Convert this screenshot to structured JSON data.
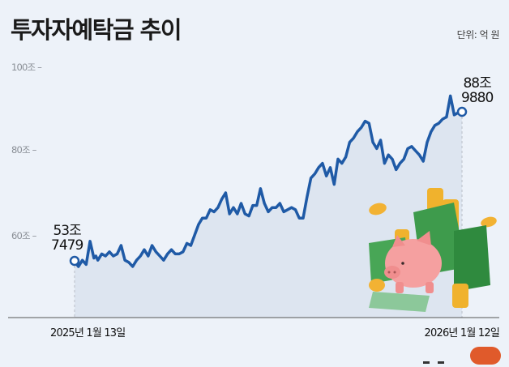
{
  "header": {
    "title": "투자자예탁금 추이",
    "unit": "단위: 억 원"
  },
  "y_axis": {
    "ticks": [
      {
        "label": "100조 –",
        "value": 100
      },
      {
        "label": "80조 –",
        "value": 80
      },
      {
        "label": "60조 –",
        "value": 60
      }
    ]
  },
  "annotations": {
    "start_line1": "53조",
    "start_line2": "7479",
    "end_line1": "88조",
    "end_line2": "9880"
  },
  "x_axis": {
    "start_label": "2025년 1월 13일",
    "end_label": "2026년 1월 12일"
  },
  "colors": {
    "background": "#edf2f9",
    "line": "#1f5aa6",
    "area": "#dde5f0",
    "accent_badge": "#e05a2b"
  },
  "chart_data": {
    "type": "area",
    "title": "투자자예탁금 추이",
    "unit": "억 원",
    "xlabel": "",
    "ylabel": "",
    "ylim": [
      50,
      100
    ],
    "y_ticks": [
      60,
      80,
      100
    ],
    "y_tick_labels": [
      "60조",
      "80조",
      "100조"
    ],
    "x_range": [
      "2025-01-13",
      "2026-01-12"
    ],
    "grid": false,
    "start": {
      "date": "2025-01-13",
      "value": 537479,
      "label": "53조 7479"
    },
    "end": {
      "date": "2026-01-12",
      "value": 889880,
      "label": "88조 9880"
    },
    "series": [
      {
        "name": "투자자예탁금 (조 원)",
        "x_frac": [
          0.0,
          0.01,
          0.02,
          0.03,
          0.04,
          0.05,
          0.055,
          0.06,
          0.07,
          0.08,
          0.09,
          0.1,
          0.11,
          0.12,
          0.13,
          0.14,
          0.15,
          0.16,
          0.17,
          0.18,
          0.19,
          0.2,
          0.21,
          0.22,
          0.23,
          0.24,
          0.25,
          0.26,
          0.27,
          0.28,
          0.29,
          0.3,
          0.31,
          0.32,
          0.33,
          0.34,
          0.35,
          0.36,
          0.37,
          0.38,
          0.39,
          0.4,
          0.41,
          0.42,
          0.43,
          0.44,
          0.45,
          0.46,
          0.47,
          0.48,
          0.49,
          0.5,
          0.51,
          0.52,
          0.53,
          0.54,
          0.55,
          0.56,
          0.57,
          0.58,
          0.59,
          0.6,
          0.61,
          0.62,
          0.63,
          0.64,
          0.65,
          0.66,
          0.67,
          0.68,
          0.69,
          0.7,
          0.71,
          0.72,
          0.73,
          0.74,
          0.75,
          0.76,
          0.77,
          0.78,
          0.79,
          0.8,
          0.81,
          0.82,
          0.83,
          0.84,
          0.85,
          0.86,
          0.87,
          0.88,
          0.89,
          0.9,
          0.91,
          0.92,
          0.93,
          0.94,
          0.95,
          0.96,
          0.97,
          0.98,
          0.99,
          1.0
        ],
        "values": [
          53.7,
          52.5,
          54.0,
          53.0,
          58.5,
          54.5,
          55.0,
          54.0,
          55.5,
          55.0,
          56.0,
          55.0,
          55.5,
          57.5,
          54.0,
          53.5,
          52.5,
          54.0,
          55.0,
          56.5,
          55.0,
          57.5,
          56.0,
          55.0,
          54.0,
          55.5,
          56.5,
          55.5,
          55.5,
          56.0,
          58.0,
          57.5,
          60.0,
          62.5,
          64.0,
          64.0,
          66.0,
          65.5,
          66.5,
          68.5,
          70.0,
          65.0,
          66.5,
          65.0,
          67.5,
          65.0,
          64.5,
          67.0,
          67.0,
          71.0,
          67.5,
          65.5,
          66.5,
          66.5,
          67.5,
          65.5,
          66.0,
          66.5,
          66.0,
          64.0,
          64.0,
          69.0,
          73.5,
          74.5,
          76.0,
          77.0,
          74.0,
          76.0,
          72.0,
          78.0,
          77.0,
          78.5,
          82.0,
          83.0,
          84.5,
          85.5,
          87.0,
          86.5,
          82.0,
          80.5,
          82.5,
          77.0,
          79.0,
          78.0,
          75.5,
          77.0,
          78.0,
          80.5,
          81.0,
          80.0,
          79.0,
          77.5,
          82.0,
          84.5,
          86.0,
          86.5,
          87.5,
          88.0,
          93.0,
          88.5,
          89.0,
          88.99
        ]
      }
    ]
  }
}
